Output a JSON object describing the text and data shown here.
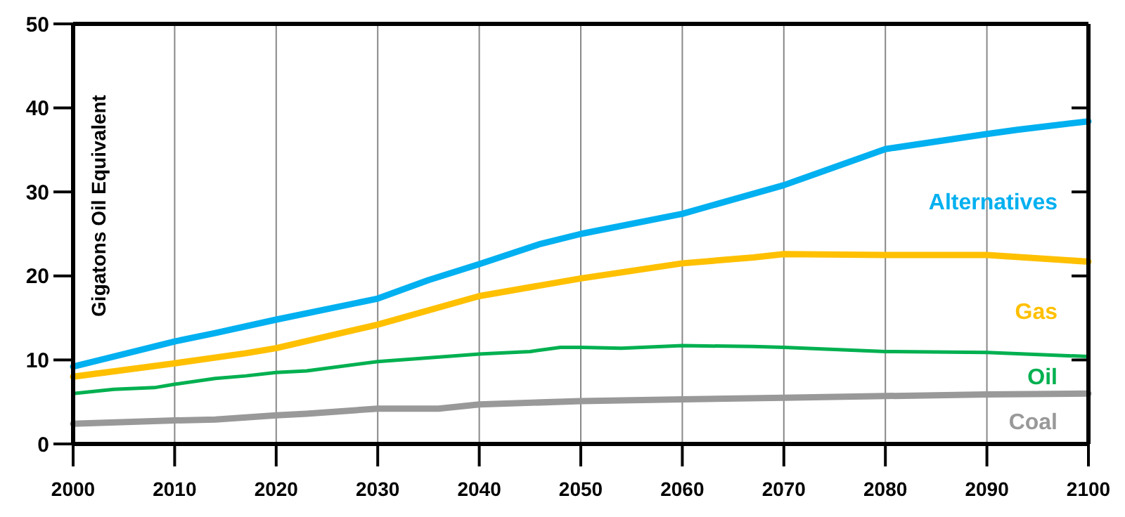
{
  "chart_data": {
    "type": "line",
    "ylabel": "Gigatons Oil Equivalent",
    "xlim": [
      2000,
      2100
    ],
    "xticks": [
      2000,
      2010,
      2020,
      2030,
      2040,
      2050,
      2060,
      2070,
      2080,
      2090,
      2100
    ],
    "ylim": [
      0,
      50
    ],
    "yticks": [
      0,
      10,
      20,
      30,
      40,
      50
    ],
    "grid": "x",
    "marker": "none",
    "line_style": "solid",
    "series": [
      {
        "name": "Alternatives",
        "color": "#00b0f0",
        "x": [
          2000,
          2010,
          2014,
          2020,
          2030,
          2035,
          2040,
          2046,
          2050,
          2060,
          2070,
          2080,
          2090,
          2093,
          2100
        ],
        "values": [
          9.2,
          12.2,
          13.2,
          14.8,
          17.3,
          19.5,
          21.4,
          23.8,
          25,
          27.4,
          30.8,
          35.1,
          36.9,
          37.4,
          38.4
        ]
      },
      {
        "name": "Gas",
        "color": "#ffc000",
        "x": [
          2000,
          2010,
          2017,
          2020,
          2030,
          2040,
          2050,
          2060,
          2067,
          2070,
          2080,
          2090,
          2100
        ],
        "values": [
          8,
          9.6,
          10.8,
          11.4,
          14.2,
          17.6,
          19.7,
          21.5,
          22.2,
          22.6,
          22.5,
          22.5,
          21.7
        ]
      },
      {
        "name": "Oil",
        "color": "#00b050",
        "x": [
          2000,
          2004,
          2008,
          2010,
          2014,
          2017,
          2020,
          2023,
          2030,
          2040,
          2045,
          2048,
          2050,
          2054,
          2060,
          2067,
          2070,
          2080,
          2090,
          2100
        ],
        "values": [
          6,
          6.5,
          6.7,
          7.1,
          7.8,
          8.1,
          8.5,
          8.7,
          9.8,
          10.7,
          11,
          11.5,
          11.5,
          11.4,
          11.7,
          11.6,
          11.5,
          11,
          10.9,
          10.4
        ]
      },
      {
        "name": "Coal",
        "color": "#999999",
        "x": [
          2000,
          2010,
          2014,
          2020,
          2023,
          2030,
          2036,
          2040,
          2050,
          2060,
          2070,
          2080,
          2090,
          2100
        ],
        "values": [
          2.4,
          2.8,
          2.9,
          3.4,
          3.6,
          4.2,
          4.2,
          4.7,
          5.1,
          5.3,
          5.5,
          5.7,
          5.9,
          6
        ]
      }
    ]
  }
}
